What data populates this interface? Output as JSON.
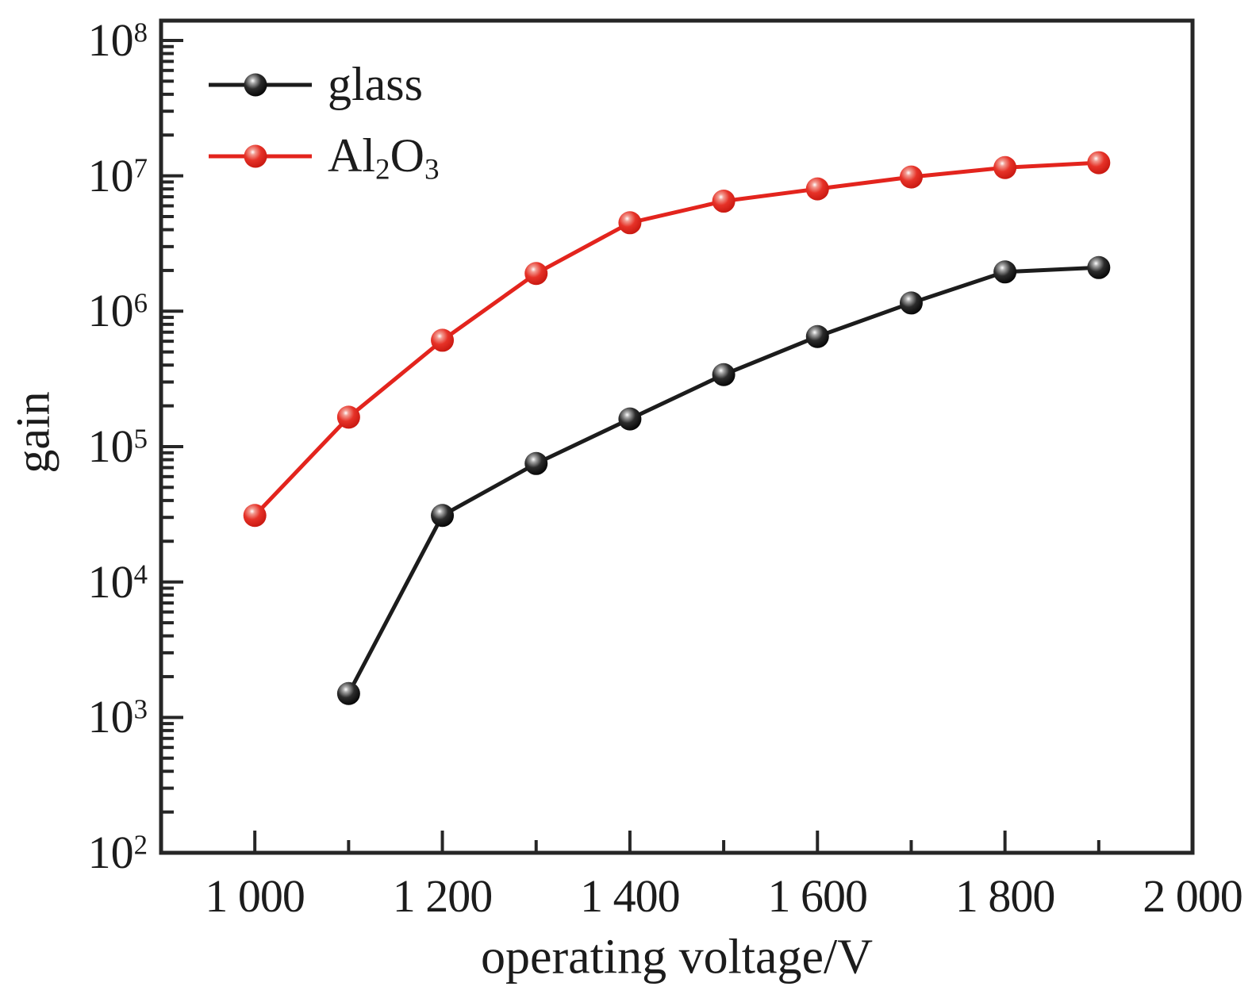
{
  "figure": {
    "background": "#ffffff",
    "axis_color": "#262626"
  },
  "chart_data": {
    "type": "line",
    "title": "",
    "xlabel": "operating voltage/V",
    "ylabel": "gain",
    "grid": false,
    "legend_position": "top-left-inside",
    "x_axis": {
      "min": 900,
      "max": 2000,
      "major_ticks": [
        {
          "value": 1000,
          "label": "1 000"
        },
        {
          "value": 1200,
          "label": "1 200"
        },
        {
          "value": 1400,
          "label": "1 400"
        },
        {
          "value": 1600,
          "label": "1 600"
        },
        {
          "value": 1800,
          "label": "1 800"
        },
        {
          "value": 2000,
          "label": "2 000"
        }
      ],
      "minor_ticks": [
        1100,
        1300,
        1500,
        1700,
        1900
      ]
    },
    "y_axis": {
      "scale": "log",
      "ylim": [
        100,
        140000000
      ],
      "base_label": "10",
      "decade_exponents": [
        2,
        3,
        4,
        5,
        6,
        7,
        8
      ],
      "minor_ticks": "2-9 per decade (log)"
    },
    "series": [
      {
        "name": "glass",
        "color": "#1c1c1c",
        "ball_colors": [
          "#ffffff",
          "#a8a8a8",
          "#2c2c2c",
          "#000000"
        ],
        "legend_label": [
          {
            "t": "glass"
          }
        ],
        "points": [
          {
            "x": 1100,
            "y": 1500
          },
          {
            "x": 1200,
            "y": 31000
          },
          {
            "x": 1300,
            "y": 75000
          },
          {
            "x": 1400,
            "y": 160000
          },
          {
            "x": 1500,
            "y": 340000
          },
          {
            "x": 1600,
            "y": 650000
          },
          {
            "x": 1700,
            "y": 1150000
          },
          {
            "x": 1800,
            "y": 1950000
          },
          {
            "x": 1900,
            "y": 2100000
          }
        ]
      },
      {
        "name": "Al2O3",
        "color": "#e3241d",
        "ball_colors": [
          "#ffffff",
          "#f29a90",
          "#e63228",
          "#c4140d"
        ],
        "legend_label": [
          {
            "t": "Al"
          },
          {
            "t": "2",
            "sub": true
          },
          {
            "t": "O"
          },
          {
            "t": "3",
            "sub": true
          }
        ],
        "points": [
          {
            "x": 1000,
            "y": 31000
          },
          {
            "x": 1100,
            "y": 165000
          },
          {
            "x": 1200,
            "y": 610000
          },
          {
            "x": 1300,
            "y": 1900000
          },
          {
            "x": 1400,
            "y": 4500000
          },
          {
            "x": 1500,
            "y": 6500000
          },
          {
            "x": 1600,
            "y": 8000000
          },
          {
            "x": 1700,
            "y": 9800000
          },
          {
            "x": 1800,
            "y": 11500000
          },
          {
            "x": 1900,
            "y": 12500000
          }
        ]
      }
    ]
  }
}
